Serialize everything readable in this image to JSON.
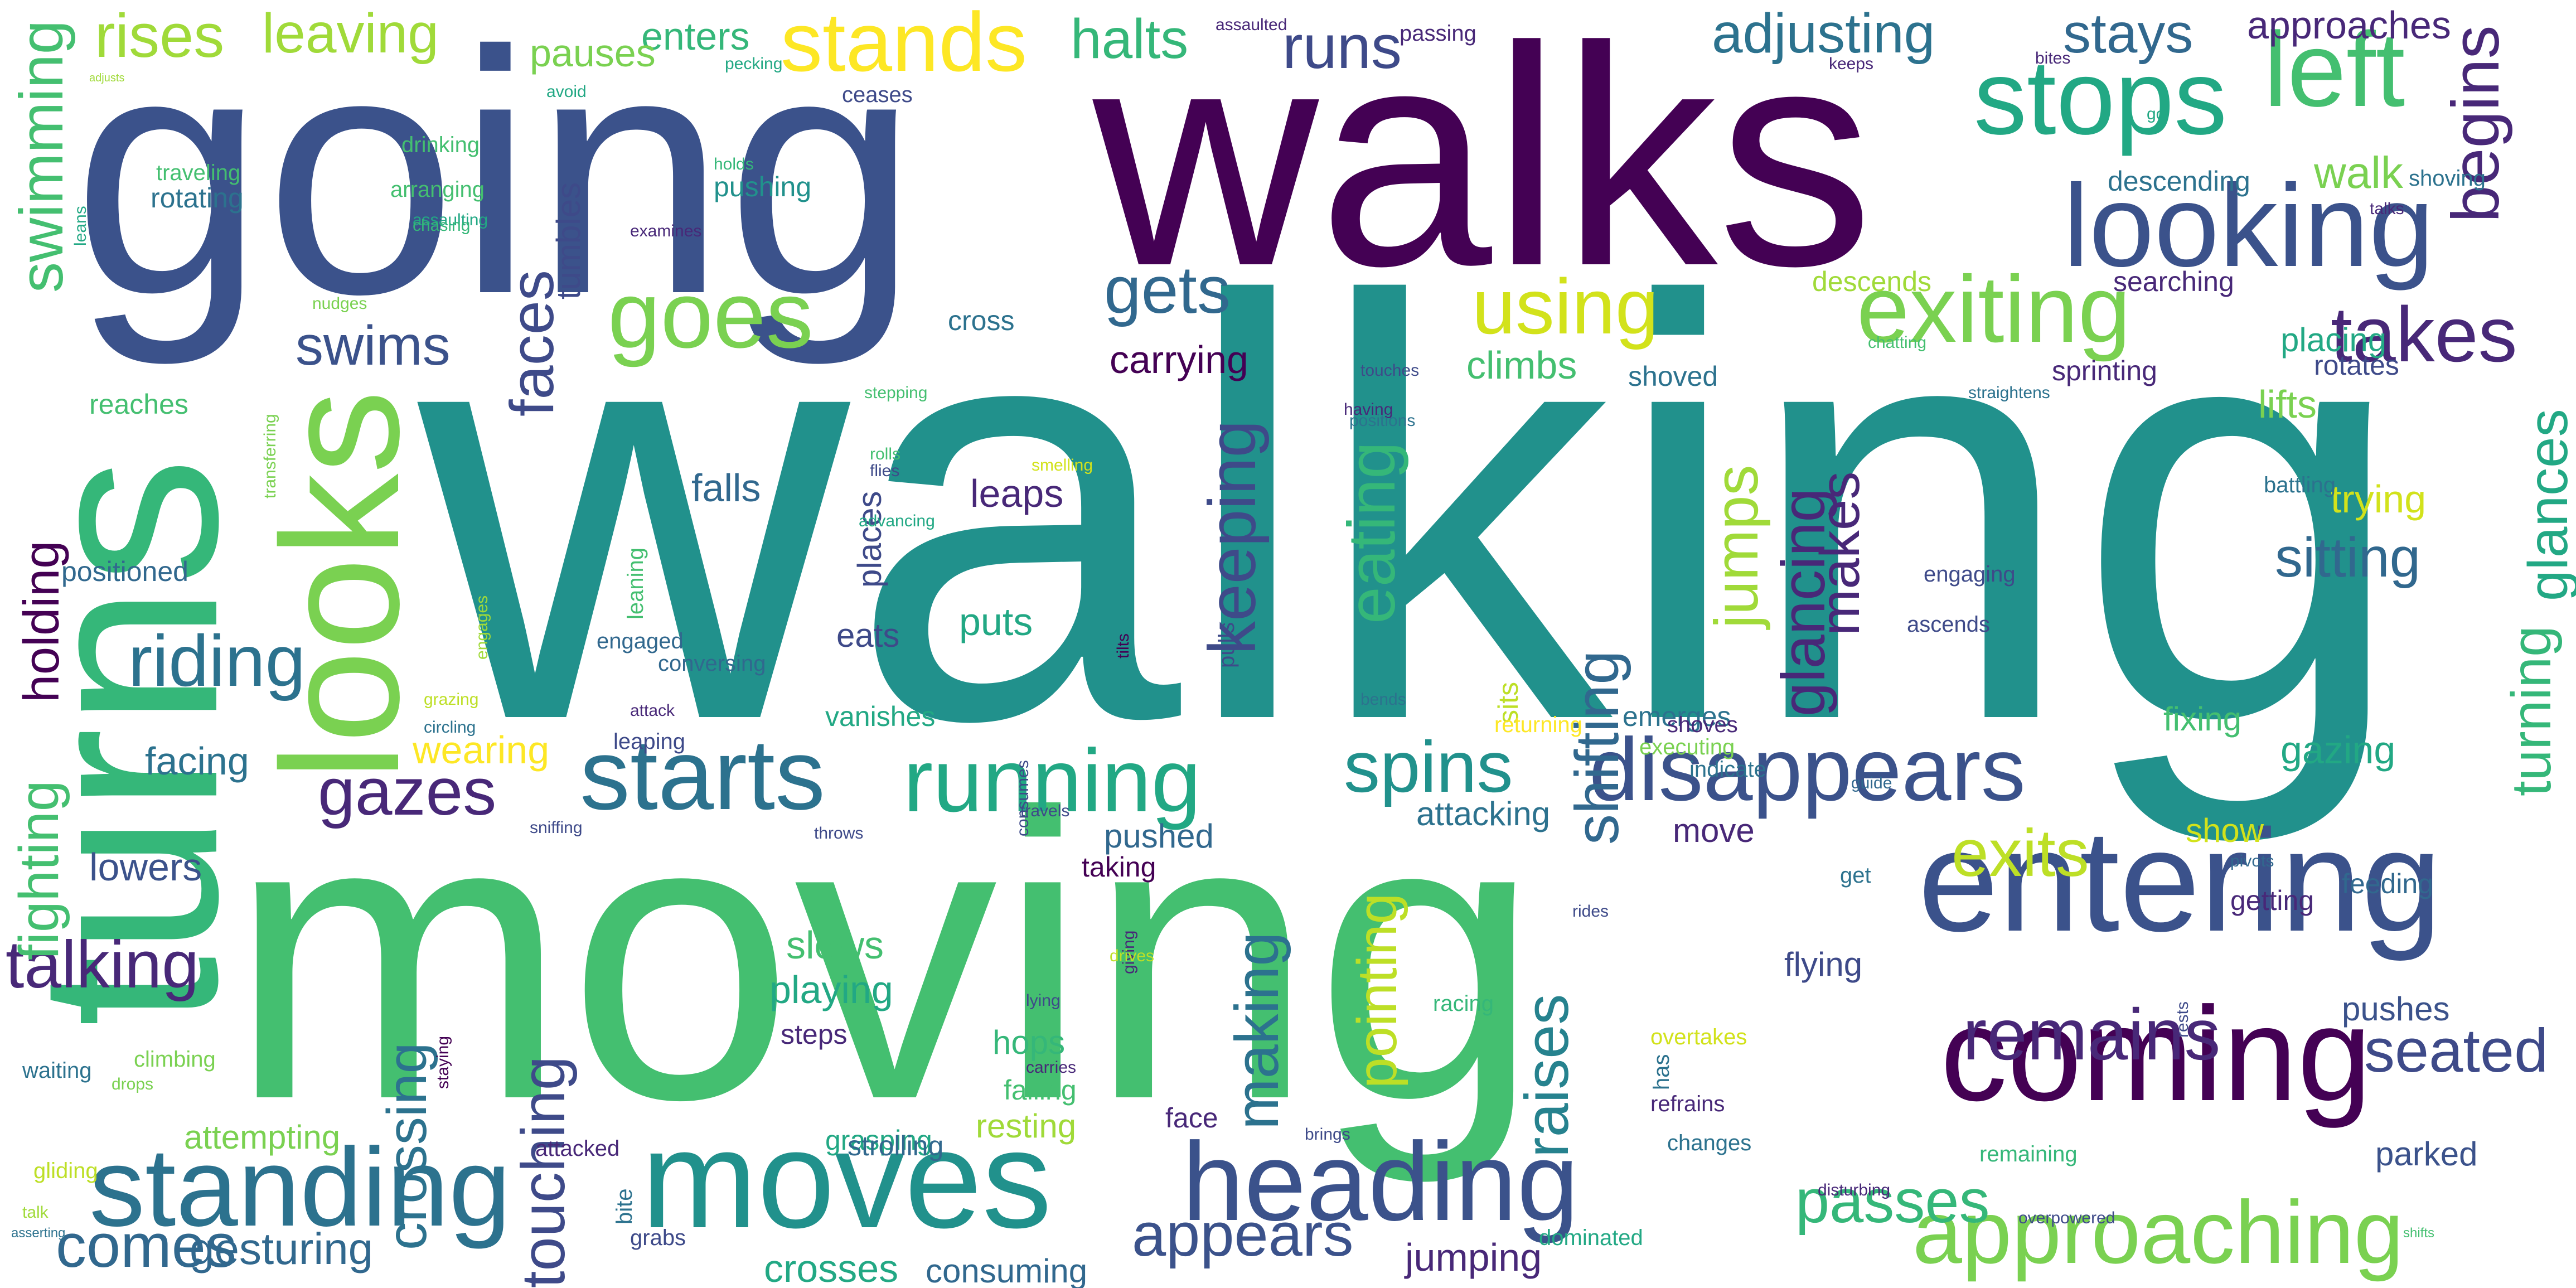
{
  "words": [
    {
      "text": "walking",
      "color": "#21918c"
    },
    {
      "text": "moving",
      "color": "#44bf70"
    },
    {
      "text": "going",
      "color": "#3b528b"
    },
    {
      "text": "walks",
      "color": "#440154"
    },
    {
      "text": "turns",
      "color": "#35b779"
    },
    {
      "text": "looks",
      "color": "#7ad151"
    },
    {
      "text": "coming",
      "color": "#440154"
    },
    {
      "text": "entering",
      "color": "#3b528b"
    },
    {
      "text": "moves",
      "color": "#21918c"
    },
    {
      "text": "heading",
      "color": "#3b528b"
    },
    {
      "text": "standing",
      "color": "#2c728e"
    },
    {
      "text": "stops",
      "color": "#22a884"
    },
    {
      "text": "left",
      "color": "#44bf70"
    },
    {
      "text": "looking",
      "color": "#3b528b"
    },
    {
      "text": "starts",
      "color": "#2c728e"
    },
    {
      "text": "running",
      "color": "#22a884"
    },
    {
      "text": "disappears",
      "color": "#3b528b"
    },
    {
      "text": "approaching",
      "color": "#7ad151"
    },
    {
      "text": "stands",
      "color": "#fde725"
    },
    {
      "text": "goes",
      "color": "#7ad151"
    },
    {
      "text": "exiting",
      "color": "#7ad151"
    },
    {
      "text": "remains",
      "color": "#482878"
    },
    {
      "text": "swimming",
      "color": "#44bf70"
    },
    {
      "text": "begins",
      "color": "#482878"
    },
    {
      "text": "takes",
      "color": "#482878"
    },
    {
      "text": "using",
      "color": "#d2e21b"
    },
    {
      "text": "gets",
      "color": "#31688e"
    },
    {
      "text": "spins",
      "color": "#21918c"
    },
    {
      "text": "gazes",
      "color": "#482878"
    },
    {
      "text": "riding",
      "color": "#2c728e"
    },
    {
      "text": "exits",
      "color": "#bddf26"
    },
    {
      "text": "seated",
      "color": "#3e4a89"
    },
    {
      "text": "appears",
      "color": "#3b528b"
    },
    {
      "text": "comes",
      "color": "#31688e"
    },
    {
      "text": "talking",
      "color": "#482878"
    },
    {
      "text": "eating",
      "color": "#35b779"
    },
    {
      "text": "keeping",
      "color": "#3e4a89"
    },
    {
      "text": "shifting",
      "color": "#31688e"
    },
    {
      "text": "glancing",
      "color": "#482878"
    },
    {
      "text": "jumps",
      "color": "#a0da39"
    },
    {
      "text": "makes",
      "color": "#482878"
    },
    {
      "text": "glances",
      "color": "#22a884"
    },
    {
      "text": "turning",
      "color": "#35b779"
    },
    {
      "text": "crossing",
      "color": "#2c728e"
    },
    {
      "text": "touching",
      "color": "#3e4a89"
    },
    {
      "text": "making",
      "color": "#2c728e"
    },
    {
      "text": "pointing",
      "color": "#bddf26"
    },
    {
      "text": "raises",
      "color": "#26828e"
    },
    {
      "text": "passes",
      "color": "#35b779"
    },
    {
      "text": "faces",
      "color": "#3e4a89"
    },
    {
      "text": "holding",
      "color": "#440154"
    },
    {
      "text": "fighting",
      "color": "#44bf70"
    },
    {
      "text": "rises",
      "color": "#a0da39"
    },
    {
      "text": "leaving",
      "color": "#a0da39"
    },
    {
      "text": "runs",
      "color": "#3e4a89"
    },
    {
      "text": "halts",
      "color": "#35b779"
    },
    {
      "text": "adjusting",
      "color": "#2c728e"
    },
    {
      "text": "stays",
      "color": "#31688e"
    },
    {
      "text": "approaches",
      "color": "#482878"
    },
    {
      "text": "swims",
      "color": "#3b528b"
    },
    {
      "text": "sitting",
      "color": "#31688e"
    },
    {
      "text": "enters",
      "color": "#35b779"
    },
    {
      "text": "pauses",
      "color": "#7ad151"
    },
    {
      "text": "gesturing",
      "color": "#31688e"
    },
    {
      "text": "crosses",
      "color": "#22a884"
    },
    {
      "text": "jumping",
      "color": "#482878"
    },
    {
      "text": "consuming",
      "color": "#31688e"
    },
    {
      "text": "carrying",
      "color": "#440154"
    },
    {
      "text": "falls",
      "color": "#31688e"
    },
    {
      "text": "leaps",
      "color": "#482878"
    },
    {
      "text": "puts",
      "color": "#22a884"
    },
    {
      "text": "eats",
      "color": "#3e4a89"
    },
    {
      "text": "climbs",
      "color": "#44bf70"
    },
    {
      "text": "shoved",
      "color": "#2c728e"
    },
    {
      "text": "walk",
      "color": "#7ad151"
    },
    {
      "text": "lifts",
      "color": "#7ad151"
    },
    {
      "text": "placing",
      "color": "#22a884"
    },
    {
      "text": "rotates",
      "color": "#3e4a89"
    },
    {
      "text": "trying",
      "color": "#d2e21b"
    },
    {
      "text": "fixing",
      "color": "#44bf70"
    },
    {
      "text": "gazing",
      "color": "#22a884"
    },
    {
      "text": "show",
      "color": "#d2e21b"
    },
    {
      "text": "getting",
      "color": "#482878"
    },
    {
      "text": "feeding",
      "color": "#31688e"
    },
    {
      "text": "pushes",
      "color": "#3b528b"
    },
    {
      "text": "parked",
      "color": "#3b528b"
    },
    {
      "text": "facing",
      "color": "#2c728e"
    },
    {
      "text": "wearing",
      "color": "#fde725"
    },
    {
      "text": "lowers",
      "color": "#3b528b"
    },
    {
      "text": "attempting",
      "color": "#7ad151"
    },
    {
      "text": "attacking",
      "color": "#2c728e"
    },
    {
      "text": "move",
      "color": "#482878"
    },
    {
      "text": "pushed",
      "color": "#31688e"
    },
    {
      "text": "taking",
      "color": "#440154"
    },
    {
      "text": "slows",
      "color": "#44bf70"
    },
    {
      "text": "playing",
      "color": "#22a884"
    },
    {
      "text": "steps",
      "color": "#482878"
    },
    {
      "text": "hops",
      "color": "#35b779"
    },
    {
      "text": "resting",
      "color": "#a0da39"
    },
    {
      "text": "falling",
      "color": "#44bf70"
    },
    {
      "text": "flying",
      "color": "#3e4a89"
    },
    {
      "text": "grasping",
      "color": "#22a884"
    },
    {
      "text": "strolling",
      "color": "#31688e"
    },
    {
      "text": "places",
      "color": "#3e4a89"
    },
    {
      "text": "vanishes",
      "color": "#22a884"
    },
    {
      "text": "rotating",
      "color": "#2c728e"
    },
    {
      "text": "pushing",
      "color": "#21918c"
    },
    {
      "text": "emerges",
      "color": "#2c728e"
    },
    {
      "text": "face",
      "color": "#482878"
    },
    {
      "text": "positioned",
      "color": "#31688e"
    },
    {
      "text": "reaches",
      "color": "#44bf70"
    },
    {
      "text": "cross",
      "color": "#2c728e"
    },
    {
      "text": "engaged",
      "color": "#31688e"
    },
    {
      "text": "sits",
      "color": "#bddf26"
    },
    {
      "text": "returning",
      "color": "#fde725"
    },
    {
      "text": "descends",
      "color": "#a0da39"
    },
    {
      "text": "descending",
      "color": "#2c728e"
    },
    {
      "text": "shoving",
      "color": "#2c728e"
    },
    {
      "text": "searching",
      "color": "#482878"
    },
    {
      "text": "sprinting",
      "color": "#482878"
    },
    {
      "text": "battling",
      "color": "#2c728e"
    },
    {
      "text": "overtakes",
      "color": "#d2e21b"
    },
    {
      "text": "racing",
      "color": "#35b779"
    },
    {
      "text": "climbing",
      "color": "#7ad151"
    },
    {
      "text": "waiting",
      "color": "#2c728e"
    },
    {
      "text": "attacked",
      "color": "#482878"
    },
    {
      "text": "passing",
      "color": "#482878"
    },
    {
      "text": "tumbles",
      "color": "#3e4a89"
    },
    {
      "text": "ceases",
      "color": "#3e4a89"
    },
    {
      "text": "traveling",
      "color": "#44bf70"
    },
    {
      "text": "arranging",
      "color": "#44bf70"
    },
    {
      "text": "drinking",
      "color": "#44bf70"
    },
    {
      "text": "leaning",
      "color": "#44bf70"
    },
    {
      "text": "leaping",
      "color": "#3e4a89"
    },
    {
      "text": "conversing",
      "color": "#31688e"
    },
    {
      "text": "assaulting",
      "color": "#22a884"
    },
    {
      "text": "chasing",
      "color": "#35b779"
    },
    {
      "text": "holds",
      "color": "#35b779"
    },
    {
      "text": "leans",
      "color": "#22a884"
    },
    {
      "text": "transferring",
      "color": "#7ad151"
    },
    {
      "text": "engages",
      "color": "#a0da39"
    },
    {
      "text": "grazing",
      "color": "#bddf26"
    },
    {
      "text": "circling",
      "color": "#2c728e"
    },
    {
      "text": "sniffing",
      "color": "#3e4a89"
    },
    {
      "text": "throws",
      "color": "#3e4a89"
    },
    {
      "text": "bite",
      "color": "#2c728e"
    },
    {
      "text": "grabs",
      "color": "#3e4a89"
    },
    {
      "text": "gliding",
      "color": "#bddf26"
    },
    {
      "text": "talk",
      "color": "#a0da39"
    },
    {
      "text": "drops",
      "color": "#7ad151"
    },
    {
      "text": "staying",
      "color": "#440154"
    },
    {
      "text": "dominated",
      "color": "#22a884"
    },
    {
      "text": "refrains",
      "color": "#482878"
    },
    {
      "text": "has",
      "color": "#2c728e"
    },
    {
      "text": "changes",
      "color": "#2c728e"
    },
    {
      "text": "brings",
      "color": "#3e4a89"
    },
    {
      "text": "disturbing",
      "color": "#482878"
    },
    {
      "text": "remaining",
      "color": "#35b779"
    },
    {
      "text": "overpowered",
      "color": "#3e4a89"
    },
    {
      "text": "rests",
      "color": "#3e4a89"
    },
    {
      "text": "pivots",
      "color": "#31688e"
    },
    {
      "text": "get",
      "color": "#2c728e"
    },
    {
      "text": "guide",
      "color": "#31688e"
    },
    {
      "text": "indicate",
      "color": "#2c728e"
    },
    {
      "text": "executing",
      "color": "#7ad151"
    },
    {
      "text": "shoves",
      "color": "#482878"
    },
    {
      "text": "ascends",
      "color": "#3e4a89"
    },
    {
      "text": "engaging",
      "color": "#3e4a89"
    },
    {
      "text": "straightens",
      "color": "#2c728e"
    },
    {
      "text": "chatting",
      "color": "#44bf70"
    },
    {
      "text": "touches",
      "color": "#3e4a89"
    },
    {
      "text": "having",
      "color": "#482878"
    },
    {
      "text": "positions",
      "color": "#2c728e"
    },
    {
      "text": "bends",
      "color": "#2c728e"
    },
    {
      "text": "pulls",
      "color": "#3e4a89"
    },
    {
      "text": "tilts",
      "color": "#440154"
    },
    {
      "text": "consumes",
      "color": "#3e4a89"
    },
    {
      "text": "travels",
      "color": "#3e4a89"
    },
    {
      "text": "giving",
      "color": "#482878"
    },
    {
      "text": "drives",
      "color": "#bddf26"
    },
    {
      "text": "rides",
      "color": "#3e4a89"
    },
    {
      "text": "carries",
      "color": "#482878"
    },
    {
      "text": "lying",
      "color": "#3e4a89"
    },
    {
      "text": "advancing",
      "color": "#22a884"
    },
    {
      "text": "flies",
      "color": "#3e4a89"
    },
    {
      "text": "rolls",
      "color": "#44bf70"
    },
    {
      "text": "smelling",
      "color": "#d2e21b"
    },
    {
      "text": "stepping",
      "color": "#44bf70"
    },
    {
      "text": "assaulted",
      "color": "#482878"
    },
    {
      "text": "nudges",
      "color": "#7ad151"
    },
    {
      "text": "examines",
      "color": "#482878"
    },
    {
      "text": "pecking",
      "color": "#22a884"
    },
    {
      "text": "avoid",
      "color": "#22a884"
    },
    {
      "text": "adjusts",
      "color": "#a0da39"
    },
    {
      "text": "keeps",
      "color": "#482878"
    },
    {
      "text": "bites",
      "color": "#482878"
    },
    {
      "text": "go",
      "color": "#22a884"
    },
    {
      "text": "talks",
      "color": "#482878"
    },
    {
      "text": "attack",
      "color": "#482878"
    },
    {
      "text": "shifts",
      "color": "#44bf70"
    },
    {
      "text": "asserting",
      "color": "#2c728e"
    }
  ]
}
